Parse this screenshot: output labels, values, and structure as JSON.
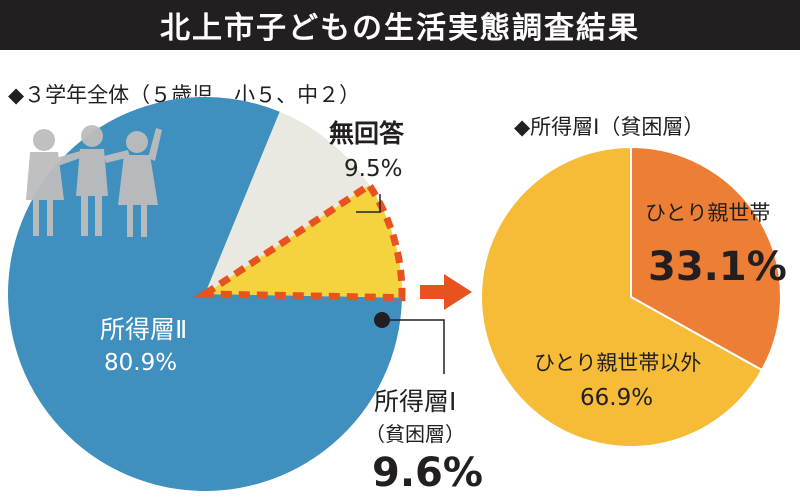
{
  "title": "北上市子どもの生活実態調査結果",
  "colors": {
    "blue": "#3f8fbf",
    "gray": "#e9e8e1",
    "yellow": "#f4d33f",
    "orange_dash": "#e8521f",
    "orange": "#ed7e35",
    "gold": "#f6bc37",
    "arrow": "#e8521f"
  },
  "chart_data": [
    {
      "type": "pie",
      "title": "◆３学年全体（５歳児、小５、中２）",
      "slices": [
        {
          "label": "所得層Ⅱ",
          "value": 80.9,
          "value_text": "80.9%"
        },
        {
          "label": "無回答",
          "value": 9.5,
          "value_text": "9.5%"
        },
        {
          "label": "所得層Ⅰ",
          "sublabel": "（貧困層）",
          "value": 9.6,
          "value_text": "9.6%"
        }
      ]
    },
    {
      "type": "pie",
      "title": "◆所得層Ⅰ（貧困層）",
      "slices": [
        {
          "label": "ひとり親世帯",
          "value": 33.1,
          "value_text": "33.1%"
        },
        {
          "label": "ひとり親世帯以外",
          "value": 66.9,
          "value_text": "66.9%"
        }
      ]
    }
  ]
}
